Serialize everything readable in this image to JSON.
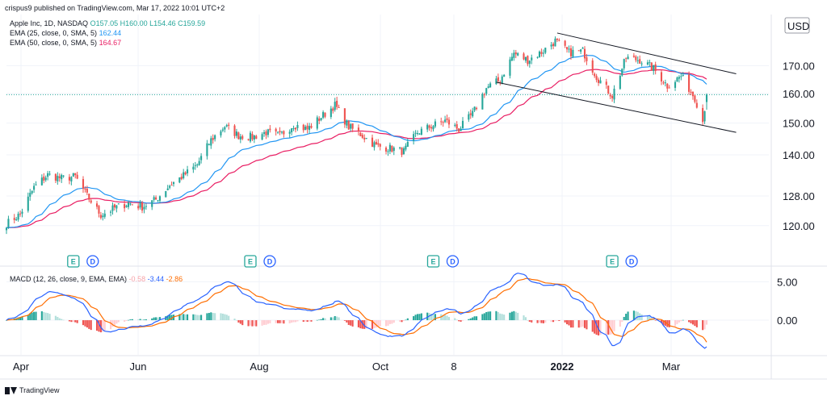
{
  "publisher": "crispus9 published on TradingView.com, Mar 17, 2022 10:01 UTC+2",
  "legend": {
    "symbol": "Apple Inc, 1D, NASDAQ",
    "ohlc": "O157.05 H160.00 L154.46 C159.59",
    "ema25_label": "EMA (25, close, 0, SMA, 5)",
    "ema25_value": "162.44",
    "ema50_label": "EMA (50, close, 0, SMA, 5)",
    "ema50_value": "164.67",
    "macd_label": "MACD (12, 26, close, 9, EMA, EMA)",
    "macd_hist": "-0.58",
    "macd_line": "-3.44",
    "macd_signal": "-2.86"
  },
  "currency": "USD",
  "footer": "TradingView",
  "colors": {
    "up": "#26a69a",
    "down": "#ef5350",
    "ema25": "#2196f3",
    "ema50": "#e91e63",
    "macd": "#2962ff",
    "signal": "#ff6d00",
    "trend": "#131722",
    "price_line": "#26a69a"
  },
  "chart_data": [
    {
      "type": "candlestick",
      "title": "Apple Inc, 1D, NASDAQ",
      "scale": "log",
      "ylim": [
        113,
        190
      ],
      "y_ticks": [
        "120.00",
        "128.00",
        "140.00",
        "150.00",
        "160.00",
        "170.00"
      ],
      "x_ticks": [
        "Apr",
        "Jun",
        "Aug",
        "Oct",
        "8",
        "2022",
        "Mar"
      ],
      "current_price": 159.59,
      "close_path": [
        [
          "2021-03-25",
          120.5
        ],
        [
          "2021-04-01",
          123.0
        ],
        [
          "2021-04-08",
          130.4
        ],
        [
          "2021-04-15",
          134.0
        ],
        [
          "2021-04-22",
          133.0
        ],
        [
          "2021-04-29",
          133.5
        ],
        [
          "2021-05-05",
          128.0
        ],
        [
          "2021-05-12",
          122.8
        ],
        [
          "2021-05-19",
          124.7
        ],
        [
          "2021-05-26",
          126.0
        ],
        [
          "2021-06-02",
          125.0
        ],
        [
          "2021-06-09",
          127.0
        ],
        [
          "2021-06-16",
          131.0
        ],
        [
          "2021-06-23",
          133.8
        ],
        [
          "2021-06-30",
          137.0
        ],
        [
          "2021-07-07",
          144.6
        ],
        [
          "2021-07-14",
          149.0
        ],
        [
          "2021-07-21",
          146.0
        ],
        [
          "2021-07-28",
          145.5
        ],
        [
          "2021-08-04",
          147.0
        ],
        [
          "2021-08-11",
          146.0
        ],
        [
          "2021-08-18",
          149.5
        ],
        [
          "2021-08-25",
          148.0
        ],
        [
          "2021-09-01",
          152.0
        ],
        [
          "2021-09-08",
          156.0
        ],
        [
          "2021-09-15",
          148.8
        ],
        [
          "2021-09-22",
          146.0
        ],
        [
          "2021-09-29",
          142.7
        ],
        [
          "2021-10-06",
          142.0
        ],
        [
          "2021-10-13",
          141.0
        ],
        [
          "2021-10-20",
          147.0
        ],
        [
          "2021-10-27",
          149.0
        ],
        [
          "2021-11-03",
          150.8
        ],
        [
          "2021-11-10",
          148.0
        ],
        [
          "2021-11-17",
          153.0
        ],
        [
          "2021-11-24",
          161.9
        ],
        [
          "2021-12-01",
          164.8
        ],
        [
          "2021-12-08",
          174.6
        ],
        [
          "2021-12-15",
          172.0
        ],
        [
          "2021-12-22",
          175.0
        ],
        [
          "2021-12-29",
          179.4
        ],
        [
          "2022-01-05",
          174.9
        ],
        [
          "2022-01-12",
          175.5
        ],
        [
          "2022-01-19",
          166.0
        ],
        [
          "2022-01-27",
          159.2
        ],
        [
          "2022-02-03",
          172.9
        ],
        [
          "2022-02-10",
          172.1
        ],
        [
          "2022-02-17",
          168.9
        ],
        [
          "2022-02-24",
          162.7
        ],
        [
          "2022-03-03",
          166.2
        ],
        [
          "2022-03-10",
          158.5
        ],
        [
          "2022-03-14",
          150.6
        ],
        [
          "2022-03-16",
          159.59
        ]
      ],
      "series": [
        {
          "name": "EMA (25, close, 0, SMA, 5)",
          "last": 162.44
        },
        {
          "name": "EMA (50, close, 0, SMA, 5)",
          "last": 164.67
        }
      ],
      "trend_channel": {
        "upper": [
          [
            "2021-12-30",
            182.5
          ],
          [
            "2022-03-31",
            167.0
          ]
        ],
        "lower": [
          [
            "2021-11-29",
            164.0
          ],
          [
            "2022-03-31",
            147.0
          ]
        ]
      },
      "event_markers": [
        {
          "date": "2021-04-28",
          "labels": [
            "E",
            "D"
          ]
        },
        {
          "date": "2021-07-27",
          "labels": [
            "E",
            "D"
          ]
        },
        {
          "date": "2021-10-28",
          "labels": [
            "E",
            "D"
          ]
        },
        {
          "date": "2022-01-27",
          "labels": [
            "E",
            "D"
          ]
        }
      ]
    },
    {
      "type": "bar",
      "title": "MACD (12, 26, close, 9, EMA, EMA)",
      "ylim": [
        -4.5,
        6.5
      ],
      "y_ticks": [
        "5.00",
        "0.00"
      ],
      "series": [
        {
          "name": "histogram",
          "last": -0.58
        },
        {
          "name": "macd",
          "last": -3.44
        },
        {
          "name": "signal",
          "last": -2.86
        }
      ]
    }
  ]
}
